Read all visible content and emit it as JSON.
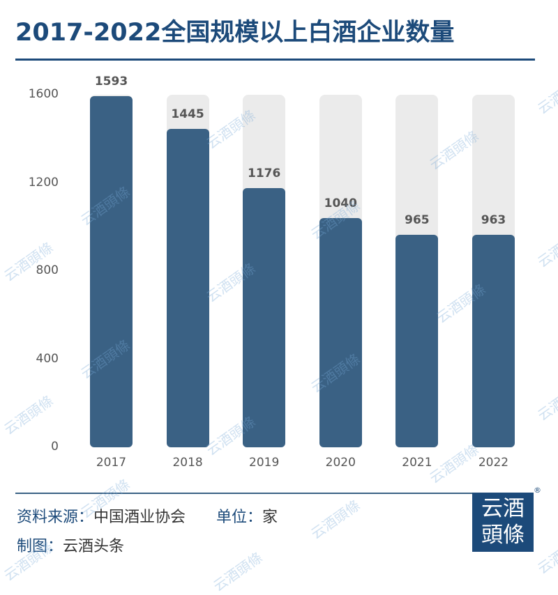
{
  "title": "2017-2022全国规模以上白酒企业数量",
  "chart_data": {
    "type": "bar",
    "title": "2017-2022全国规模以上白酒企业数量",
    "categories": [
      "2017",
      "2018",
      "2019",
      "2020",
      "2021",
      "2022"
    ],
    "values": [
      1593,
      1445,
      1176,
      1040,
      965,
      963
    ],
    "xlabel": "",
    "ylabel": "",
    "unit": "家",
    "ylim": [
      0,
      1600
    ],
    "yticks": [
      "0",
      "400",
      "800",
      "1200",
      "1600"
    ],
    "grid": false,
    "legend": null,
    "colors": {
      "bar": "#3a6184",
      "bar_background": "#ebebeb"
    }
  },
  "footer": {
    "source_label": "资料来源：",
    "source_value": "中国酒业协会",
    "unit_label": "单位：",
    "unit_value": "家",
    "maker_label": "制图：",
    "maker_value": "云酒头条"
  },
  "logo": {
    "line1": "云酒",
    "line2": "頭條",
    "registered": "®"
  },
  "watermark": "云酒頭條",
  "colors": {
    "title": "#1c4a7a",
    "accent": "#3a6184"
  }
}
